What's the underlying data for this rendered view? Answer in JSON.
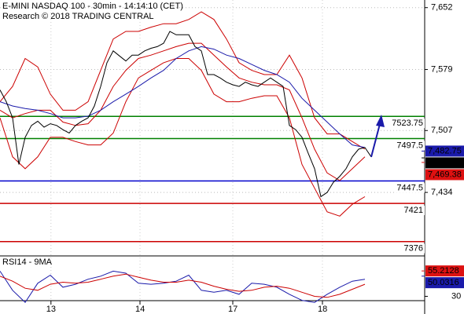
{
  "chart_data": {
    "type": "line",
    "title": "E-MINI NASDAQ 100 - 30min - 14:14:10 (CET)",
    "subtitle": "Research © 2018 TRADING CENTRAL",
    "xlim": [
      0,
      67.5
    ],
    "xticks": [
      {
        "value": 8.1,
        "label": "13"
      },
      {
        "value": 22.25,
        "label": "14"
      },
      {
        "value": 37,
        "label": "17"
      },
      {
        "value": 51.25,
        "label": "18"
      }
    ],
    "ylim": [
      7360,
      7661
    ],
    "yticks": [
      {
        "value": 7652,
        "label": "7,652"
      },
      {
        "value": 7579,
        "label": "7,579"
      },
      {
        "value": 7507,
        "label": "7,507"
      },
      {
        "value": 7434,
        "label": "7,434"
      }
    ],
    "grid": true,
    "series": [
      {
        "color": "#cc0000",
        "x": [
          0,
          2,
          4,
          6,
          8,
          10,
          12,
          14,
          16,
          18,
          20,
          22,
          24,
          26,
          28,
          30,
          32,
          34,
          36,
          38,
          40,
          42,
          44,
          46,
          48,
          50,
          52,
          54,
          56,
          58
        ],
        "values": [
          7541,
          7559,
          7592,
          7582,
          7550,
          7531,
          7531,
          7541,
          7578,
          7615,
          7624,
          7624,
          7629,
          7633,
          7633,
          7638,
          7647,
          7638,
          7615,
          7587,
          7578,
          7573,
          7573,
          7596,
          7569,
          7522,
          7503,
          7503,
          7494,
          7485
        ]
      },
      {
        "color": "#cc0000",
        "x": [
          0,
          2,
          4,
          6,
          8,
          10,
          12,
          14,
          16,
          18,
          20,
          22,
          24,
          26,
          28,
          30,
          32,
          34,
          36,
          38,
          40,
          42,
          44,
          46,
          48,
          50,
          52,
          54,
          56,
          58
        ],
        "values": [
          7522,
          7476,
          7462,
          7476,
          7499,
          7499,
          7494,
          7490,
          7490,
          7504,
          7541,
          7569,
          7578,
          7587,
          7592,
          7592,
          7578,
          7550,
          7541,
          7541,
          7545,
          7548,
          7548,
          7522,
          7467,
          7439,
          7411,
          7406,
          7420,
          7429
        ]
      },
      {
        "color": "#cc0000",
        "x": [
          0,
          2,
          4,
          6,
          8,
          10,
          12,
          14,
          16,
          18,
          20,
          22,
          24,
          26,
          28,
          30,
          32,
          34,
          36,
          38,
          40,
          42,
          44,
          46,
          48,
          50,
          52,
          54,
          56,
          58
        ],
        "values": [
          7531,
          7522,
          7527,
          7531,
          7531,
          7517,
          7513,
          7515,
          7531,
          7559,
          7578,
          7592,
          7596,
          7601,
          7606,
          7610,
          7610,
          7596,
          7582,
          7569,
          7564,
          7561,
          7561,
          7555,
          7522,
          7485,
          7457,
          7448,
          7462,
          7476
        ]
      },
      {
        "color": "#1a1aaa",
        "x": [
          0,
          2,
          4,
          6,
          8,
          10,
          12,
          14,
          16,
          18,
          20,
          22,
          24,
          26,
          28,
          30,
          32,
          34,
          36,
          38,
          40,
          42,
          44,
          46,
          48,
          50,
          52,
          54,
          56,
          58
        ],
        "values": [
          7541,
          7536,
          7533,
          7531,
          7527,
          7522,
          7522,
          7524,
          7531,
          7541,
          7550,
          7559,
          7569,
          7578,
          7592,
          7601,
          7606,
          7603,
          7596,
          7592,
          7585,
          7578,
          7573,
          7564,
          7545,
          7531,
          7517,
          7503,
          7490,
          7487
        ]
      },
      {
        "color": "#000000",
        "x": [
          0,
          1,
          2,
          3,
          4,
          5,
          6,
          7,
          8,
          9,
          10,
          11,
          12,
          13,
          14,
          15,
          16,
          17,
          18,
          19,
          20,
          21,
          22,
          23,
          24,
          25,
          26,
          27,
          28,
          29,
          30,
          31,
          32,
          33,
          34,
          35,
          36,
          37,
          38,
          39,
          40,
          41,
          42,
          43,
          44,
          45,
          46,
          47,
          48,
          49,
          50,
          51,
          52,
          53,
          54,
          55,
          56,
          57,
          58,
          59
        ],
        "values": [
          7555,
          7541,
          7522,
          7467,
          7499,
          7513,
          7518,
          7511,
          7515,
          7513,
          7508,
          7504,
          7513,
          7518,
          7522,
          7536,
          7559,
          7587,
          7601,
          7595,
          7589,
          7596,
          7596,
          7601,
          7604,
          7606,
          7610,
          7624,
          7620,
          7620,
          7620,
          7606,
          7601,
          7573,
          7573,
          7569,
          7564,
          7561,
          7559,
          7564,
          7561,
          7559,
          7564,
          7569,
          7564,
          7559,
          7513,
          7508,
          7499,
          7480,
          7462,
          7429,
          7434,
          7446,
          7453,
          7462,
          7476,
          7485,
          7487,
          7476
        ]
      }
    ],
    "levels": [
      {
        "value": 7523.75,
        "label": "7523.75",
        "color": "#008000"
      },
      {
        "value": 7497.5,
        "label": "7497.5",
        "color": "#008000"
      },
      {
        "value": 7447.5,
        "label": "7447.5",
        "color": "#0000cc"
      },
      {
        "value": 7421,
        "label": "7421",
        "color": "#cc0000"
      },
      {
        "value": 7376,
        "label": "7376",
        "color": "#cc0000"
      }
    ],
    "last_prices": [
      {
        "value": 7482.75,
        "label": "7,482.75",
        "color": "#1a1aaa"
      },
      {
        "value": 7474.75,
        "label": "7,474.75",
        "color": "#000000"
      },
      {
        "value": 7469.38,
        "label": "7,469.38",
        "color": "#dd1111"
      }
    ],
    "rsi": {
      "title": "RSI14 - 9MA",
      "ylim": [
        14,
        67
      ],
      "yticks": [
        30
      ],
      "x": [
        0,
        2,
        4,
        6,
        8,
        10,
        12,
        14,
        16,
        18,
        20,
        22,
        24,
        26,
        28,
        30,
        32,
        34,
        36,
        38,
        40,
        42,
        44,
        46,
        48,
        50,
        52,
        54,
        56,
        58
      ],
      "series": [
        {
          "color": "#1a1aaa",
          "values": [
            55,
            36,
            24,
            43,
            51,
            39,
            42,
            47,
            50,
            55,
            53,
            43,
            42,
            43,
            45,
            51,
            36,
            34,
            36,
            32,
            43,
            42,
            39,
            32,
            26,
            24,
            32,
            39,
            45,
            47
          ]
        },
        {
          "color": "#cc0000",
          "values": [
            50,
            45,
            38,
            36,
            42,
            44,
            43,
            44,
            47,
            50,
            52,
            49,
            46,
            44,
            44,
            46,
            44,
            40,
            37,
            35,
            36,
            39,
            40,
            38,
            34,
            30,
            29,
            32,
            37,
            42
          ]
        }
      ],
      "last": [
        {
          "value": 55.2128,
          "label": "55.2128",
          "color": "#dd1111"
        },
        {
          "value": 50.0316,
          "label": "50.0316",
          "color": "#1a1aaa"
        }
      ]
    }
  }
}
